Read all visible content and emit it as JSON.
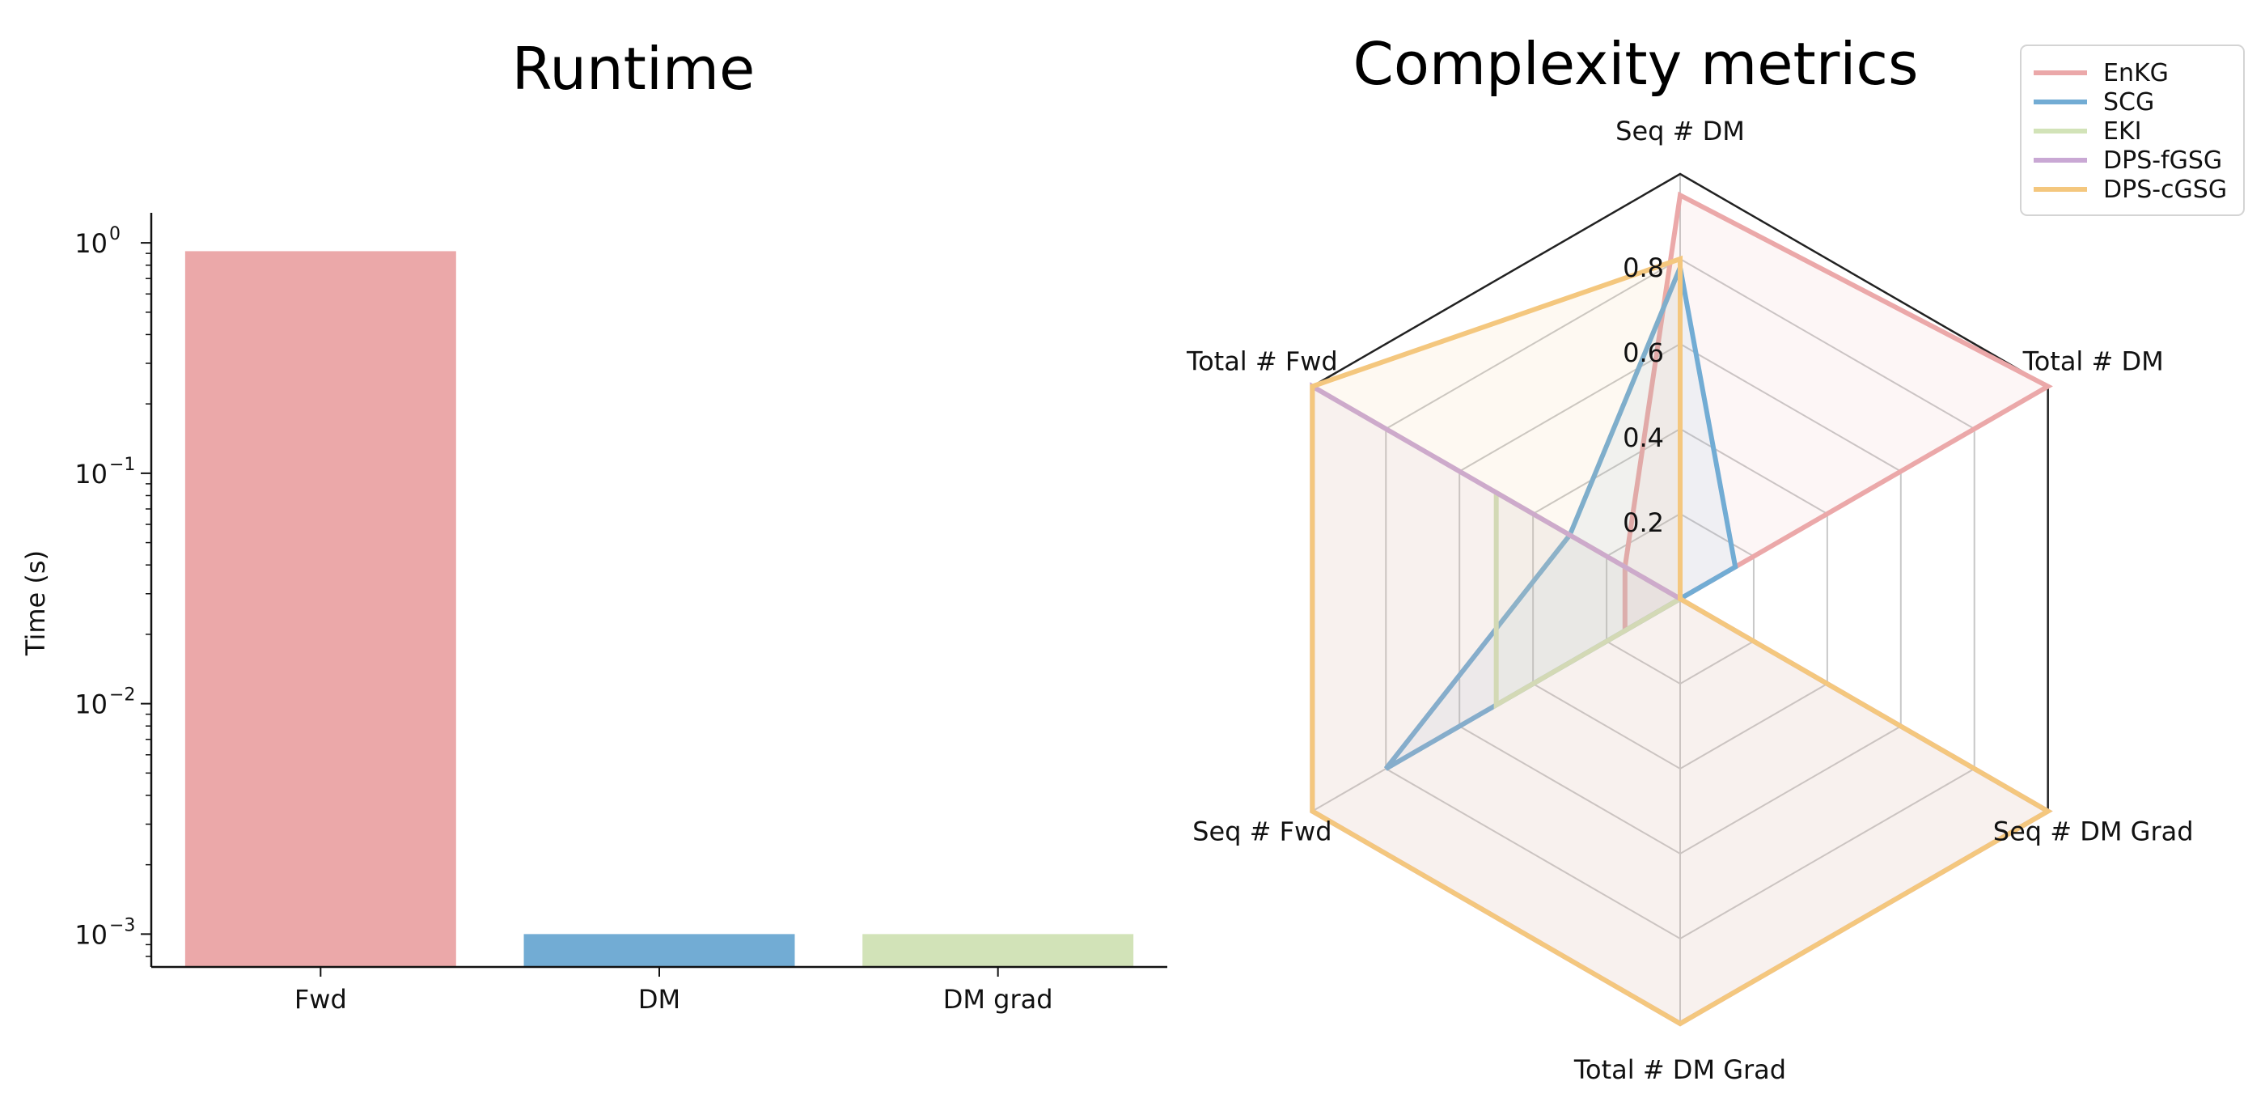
{
  "chart_data": [
    {
      "type": "bar",
      "title": "Runtime",
      "ylabel": "Time (s)",
      "yscale": "log",
      "ylim": [
        0.00072,
        1.35
      ],
      "yticks": [
        {
          "value": 1,
          "base": "10",
          "exp": "0"
        },
        {
          "value": 0.1,
          "base": "10",
          "exp": "−1"
        },
        {
          "value": 0.01,
          "base": "10",
          "exp": "−2"
        },
        {
          "value": 0.001,
          "base": "10",
          "exp": "−3"
        }
      ],
      "categories": [
        "Fwd",
        "DM",
        "DM grad"
      ],
      "values": [
        0.92,
        0.001,
        0.001
      ],
      "colors": [
        "#eba8a9",
        "#72acd4",
        "#d2e3b8"
      ],
      "grid": false
    },
    {
      "type": "radar",
      "title": "Complexity metrics",
      "axes": [
        "Seq # DM",
        "Total # DM",
        "Seq # DM Grad",
        "Total # DM Grad",
        "Seq # Fwd",
        "Total # Fwd"
      ],
      "rlim": [
        0,
        1
      ],
      "rticks": [
        "0.2",
        "0.4",
        "0.6",
        "0.8"
      ],
      "rtick_values": [
        0.2,
        0.4,
        0.6,
        0.8
      ],
      "legend_position": "upper right",
      "series": [
        {
          "name": "EnKG",
          "color": "#eba8a9",
          "values": [
            0.95,
            1.0,
            0.0,
            0.0,
            0.15,
            0.15
          ]
        },
        {
          "name": "SCG",
          "color": "#72acd4",
          "values": [
            0.78,
            0.15,
            0.0,
            0.0,
            0.8,
            0.3
          ]
        },
        {
          "name": "EKI",
          "color": "#d2e3b8",
          "values": [
            0.0,
            0.0,
            0.0,
            0.0,
            0.5,
            0.5
          ]
        },
        {
          "name": "DPS-fGSG",
          "color": "#c9a8d4",
          "values": [
            0.0,
            0.0,
            1.0,
            1.0,
            1.0,
            1.0
          ]
        },
        {
          "name": "DPS-cGSG",
          "color": "#f4c77e",
          "values": [
            0.8,
            0.0,
            1.0,
            1.0,
            1.0,
            1.0
          ]
        }
      ]
    }
  ]
}
